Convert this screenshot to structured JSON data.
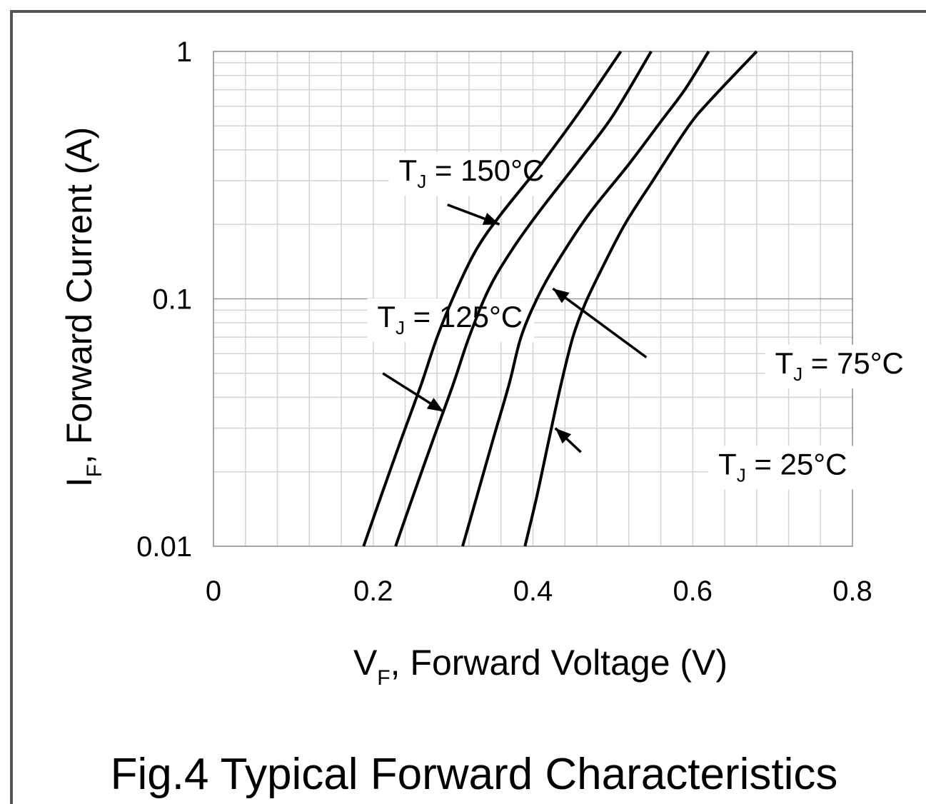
{
  "chart_data": {
    "type": "line",
    "title": "Fig.4 Typical Forward Characteristics",
    "xlabel": {
      "main": "V",
      "sub": "F",
      "rest": ", Forward Voltage (V)"
    },
    "ylabel": {
      "main": "I",
      "sub": "F",
      "rest": ", Forward Current (A)"
    },
    "x_scale": "linear",
    "y_scale": "log",
    "xlim": [
      0,
      0.8
    ],
    "ylim": [
      0.01,
      1
    ],
    "x_ticks": [
      {
        "value": 0,
        "label": "0"
      },
      {
        "value": 0.2,
        "label": "0.2"
      },
      {
        "value": 0.4,
        "label": "0.4"
      },
      {
        "value": 0.6,
        "label": "0.6"
      },
      {
        "value": 0.8,
        "label": "0.8"
      }
    ],
    "y_ticks": [
      {
        "value": 0.01,
        "label": "0.01"
      },
      {
        "value": 0.1,
        "label": "0.1"
      },
      {
        "value": 1,
        "label": "1"
      }
    ],
    "grid": true,
    "series": [
      {
        "name": "TJ = 150°C",
        "label": {
          "main": "T",
          "sub": "J",
          "rest": " = 150°C"
        },
        "points": [
          [
            0.188,
            0.01
          ],
          [
            0.21,
            0.016
          ],
          [
            0.235,
            0.027
          ],
          [
            0.26,
            0.045
          ],
          [
            0.28,
            0.07
          ],
          [
            0.305,
            0.11
          ],
          [
            0.33,
            0.16
          ],
          [
            0.36,
            0.22
          ],
          [
            0.41,
            0.35
          ],
          [
            0.46,
            0.58
          ],
          [
            0.51,
            1.0
          ]
        ]
      },
      {
        "name": "TJ = 125°C",
        "label": {
          "main": "T",
          "sub": "J",
          "rest": " = 125°C"
        },
        "points": [
          [
            0.228,
            0.01
          ],
          [
            0.25,
            0.016
          ],
          [
            0.275,
            0.027
          ],
          [
            0.3,
            0.045
          ],
          [
            0.32,
            0.07
          ],
          [
            0.345,
            0.11
          ],
          [
            0.375,
            0.16
          ],
          [
            0.41,
            0.23
          ],
          [
            0.46,
            0.37
          ],
          [
            0.5,
            0.55
          ],
          [
            0.548,
            1.0
          ]
        ]
      },
      {
        "name": "TJ = 75°C",
        "label": {
          "main": "T",
          "sub": "J",
          "rest": " = 75°C"
        },
        "points": [
          [
            0.312,
            0.01
          ],
          [
            0.33,
            0.016
          ],
          [
            0.35,
            0.027
          ],
          [
            0.37,
            0.045
          ],
          [
            0.385,
            0.07
          ],
          [
            0.405,
            0.1
          ],
          [
            0.43,
            0.14
          ],
          [
            0.47,
            0.22
          ],
          [
            0.52,
            0.35
          ],
          [
            0.56,
            0.52
          ],
          [
            0.59,
            0.7
          ],
          [
            0.62,
            1.0
          ]
        ]
      },
      {
        "name": "TJ = 25°C",
        "label": {
          "main": "T",
          "sub": "J",
          "rest": " = 25°C"
        },
        "points": [
          [
            0.39,
            0.01
          ],
          [
            0.405,
            0.016
          ],
          [
            0.42,
            0.027
          ],
          [
            0.435,
            0.045
          ],
          [
            0.45,
            0.07
          ],
          [
            0.465,
            0.095
          ],
          [
            0.485,
            0.13
          ],
          [
            0.515,
            0.2
          ],
          [
            0.55,
            0.3
          ],
          [
            0.595,
            0.5
          ],
          [
            0.625,
            0.65
          ],
          [
            0.68,
            1.0
          ]
        ]
      }
    ],
    "annotations": [
      {
        "series": 0,
        "text_at": [
          0.232,
          0.3
        ],
        "arrow_from": [
          0.293,
          0.24
        ],
        "arrow_to": [
          0.358,
          0.2
        ]
      },
      {
        "series": 1,
        "text_at": [
          0.205,
          0.077
        ],
        "arrow_from": [
          0.212,
          0.05
        ],
        "arrow_to": [
          0.288,
          0.035
        ]
      },
      {
        "series": 2,
        "text_at": [
          0.703,
          0.05
        ],
        "arrow_from": [
          0.542,
          0.058
        ],
        "arrow_to": [
          0.425,
          0.11
        ]
      },
      {
        "series": 3,
        "text_at": [
          0.632,
          0.0195
        ],
        "arrow_from": [
          0.46,
          0.024
        ],
        "arrow_to": [
          0.428,
          0.03
        ]
      }
    ]
  }
}
